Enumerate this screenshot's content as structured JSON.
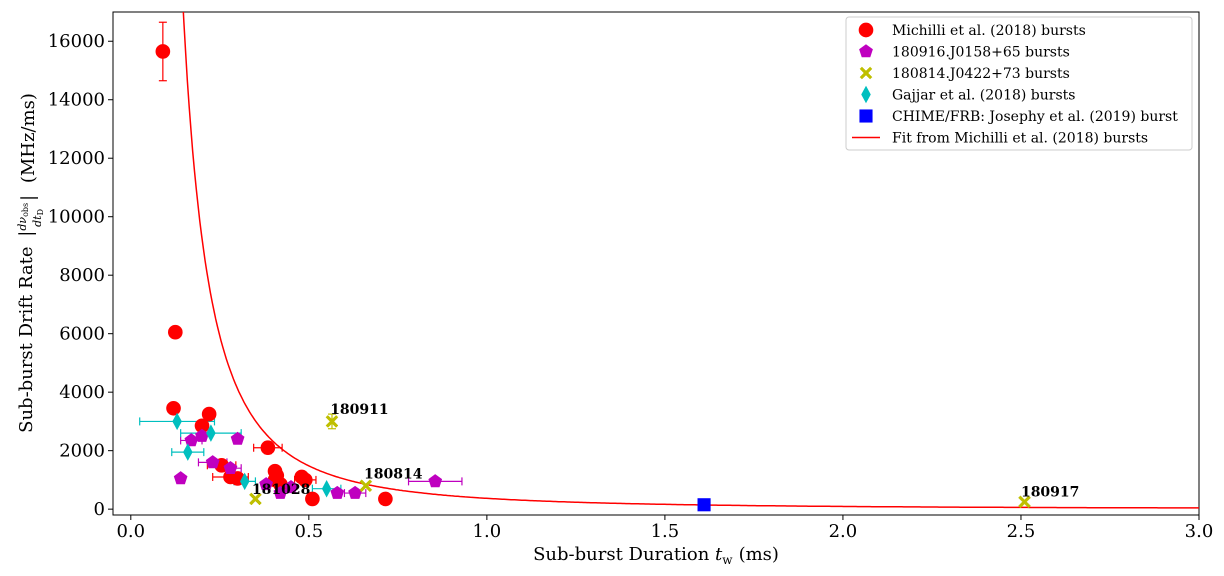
{
  "chart_data": {
    "type": "scatter",
    "xlabel": "Sub-burst Duration",
    "xlabel_symbol": "t",
    "xlabel_sub": "w",
    "xlabel_unit": "(ms)",
    "ylabel_prefix": "Sub-burst Drift Rate",
    "ylabel_unit": "(MHz/ms)",
    "xlim": [
      -0.05,
      3.0
    ],
    "ylim": [
      -200,
      17000
    ],
    "xticks": [
      "0.0",
      "0.5",
      "1.0",
      "1.5",
      "2.0",
      "2.5",
      "3.0"
    ],
    "xtick_values": [
      0.0,
      0.5,
      1.0,
      1.5,
      2.0,
      2.5,
      3.0
    ],
    "yticks": [
      "0",
      "2000",
      "4000",
      "6000",
      "8000",
      "10000",
      "12000",
      "14000",
      "16000"
    ],
    "ytick_values": [
      0,
      2000,
      4000,
      6000,
      8000,
      10000,
      12000,
      14000,
      16000
    ],
    "grid": false,
    "legend_position": "top-right",
    "series": [
      {
        "name": "Michilli et al. (2018) bursts",
        "marker": "circle",
        "color": "#ff0000",
        "points": [
          {
            "x": 0.09,
            "y": 15650,
            "yerr": 1000,
            "xerr": 0.015
          },
          {
            "x": 0.125,
            "y": 6050
          },
          {
            "x": 0.12,
            "y": 3450
          },
          {
            "x": 0.22,
            "y": 3250
          },
          {
            "x": 0.2,
            "y": 2850
          },
          {
            "x": 0.385,
            "y": 2100,
            "xerr": 0.04,
            "yerr": 200
          },
          {
            "x": 0.255,
            "y": 1500,
            "xerr": 0.04
          },
          {
            "x": 0.28,
            "y": 1100,
            "xerr": 0.05
          },
          {
            "x": 0.3,
            "y": 1050
          },
          {
            "x": 0.405,
            "y": 1300
          },
          {
            "x": 0.41,
            "y": 1150
          },
          {
            "x": 0.405,
            "y": 1000
          },
          {
            "x": 0.48,
            "y": 1100
          },
          {
            "x": 0.49,
            "y": 1000,
            "xerr": 0.03
          },
          {
            "x": 0.42,
            "y": 850
          },
          {
            "x": 0.51,
            "y": 350
          },
          {
            "x": 0.715,
            "y": 350
          }
        ]
      },
      {
        "name": "180916.J0158+65 bursts",
        "marker": "pentagon",
        "color": "#bf00bf",
        "points": [
          {
            "x": 0.14,
            "y": 1050
          },
          {
            "x": 0.17,
            "y": 2350,
            "xerr": 0.03
          },
          {
            "x": 0.2,
            "y": 2500
          },
          {
            "x": 0.3,
            "y": 2400,
            "yerr": 100
          },
          {
            "x": 0.23,
            "y": 1600,
            "xerr": 0.04
          },
          {
            "x": 0.28,
            "y": 1400,
            "xerr": 0.03
          },
          {
            "x": 0.38,
            "y": 850
          },
          {
            "x": 0.42,
            "y": 550
          },
          {
            "x": 0.45,
            "y": 750
          },
          {
            "x": 0.58,
            "y": 550
          },
          {
            "x": 0.63,
            "y": 550,
            "xerr": 0.03
          },
          {
            "x": 0.855,
            "y": 950,
            "xerr": 0.075
          }
        ]
      },
      {
        "name": "180814.J0422+73 bursts",
        "marker": "x",
        "color": "#bfbf00",
        "points": [
          {
            "x": 0.565,
            "y": 3000,
            "yerr": 250
          },
          {
            "x": 0.66,
            "y": 800
          },
          {
            "x": 0.35,
            "y": 350
          },
          {
            "x": 2.51,
            "y": 250
          }
        ]
      },
      {
        "name": "Gajjar et al. (2018) bursts",
        "marker": "thin_diamond",
        "color": "#00bfbf",
        "points": [
          {
            "x": 0.13,
            "y": 3000,
            "xerr": 0.105
          },
          {
            "x": 0.225,
            "y": 2600,
            "xerr": 0.085
          },
          {
            "x": 0.16,
            "y": 1950,
            "xerr": 0.045
          },
          {
            "x": 0.32,
            "y": 950,
            "xerr": 0.03
          },
          {
            "x": 0.55,
            "y": 700,
            "xerr": 0.04
          }
        ]
      },
      {
        "name": "CHIME/FRB: Josephy et al. (2019) burst",
        "marker": "square",
        "color": "#0000ff",
        "points": [
          {
            "x": 1.61,
            "y": 150
          }
        ]
      },
      {
        "name": "Fit from Michilli et al. (2018) bursts",
        "marker": "line",
        "color": "#ff0000",
        "fit": {
          "form": "a/x^2",
          "a": 370
        }
      }
    ],
    "annotations": [
      {
        "text": "180911",
        "x": 0.56,
        "y": 3250
      },
      {
        "text": "180814",
        "x": 0.655,
        "y": 1050
      },
      {
        "text": "181028",
        "x": 0.34,
        "y": 520
      },
      {
        "text": "180917",
        "x": 2.5,
        "y": 430
      }
    ]
  }
}
